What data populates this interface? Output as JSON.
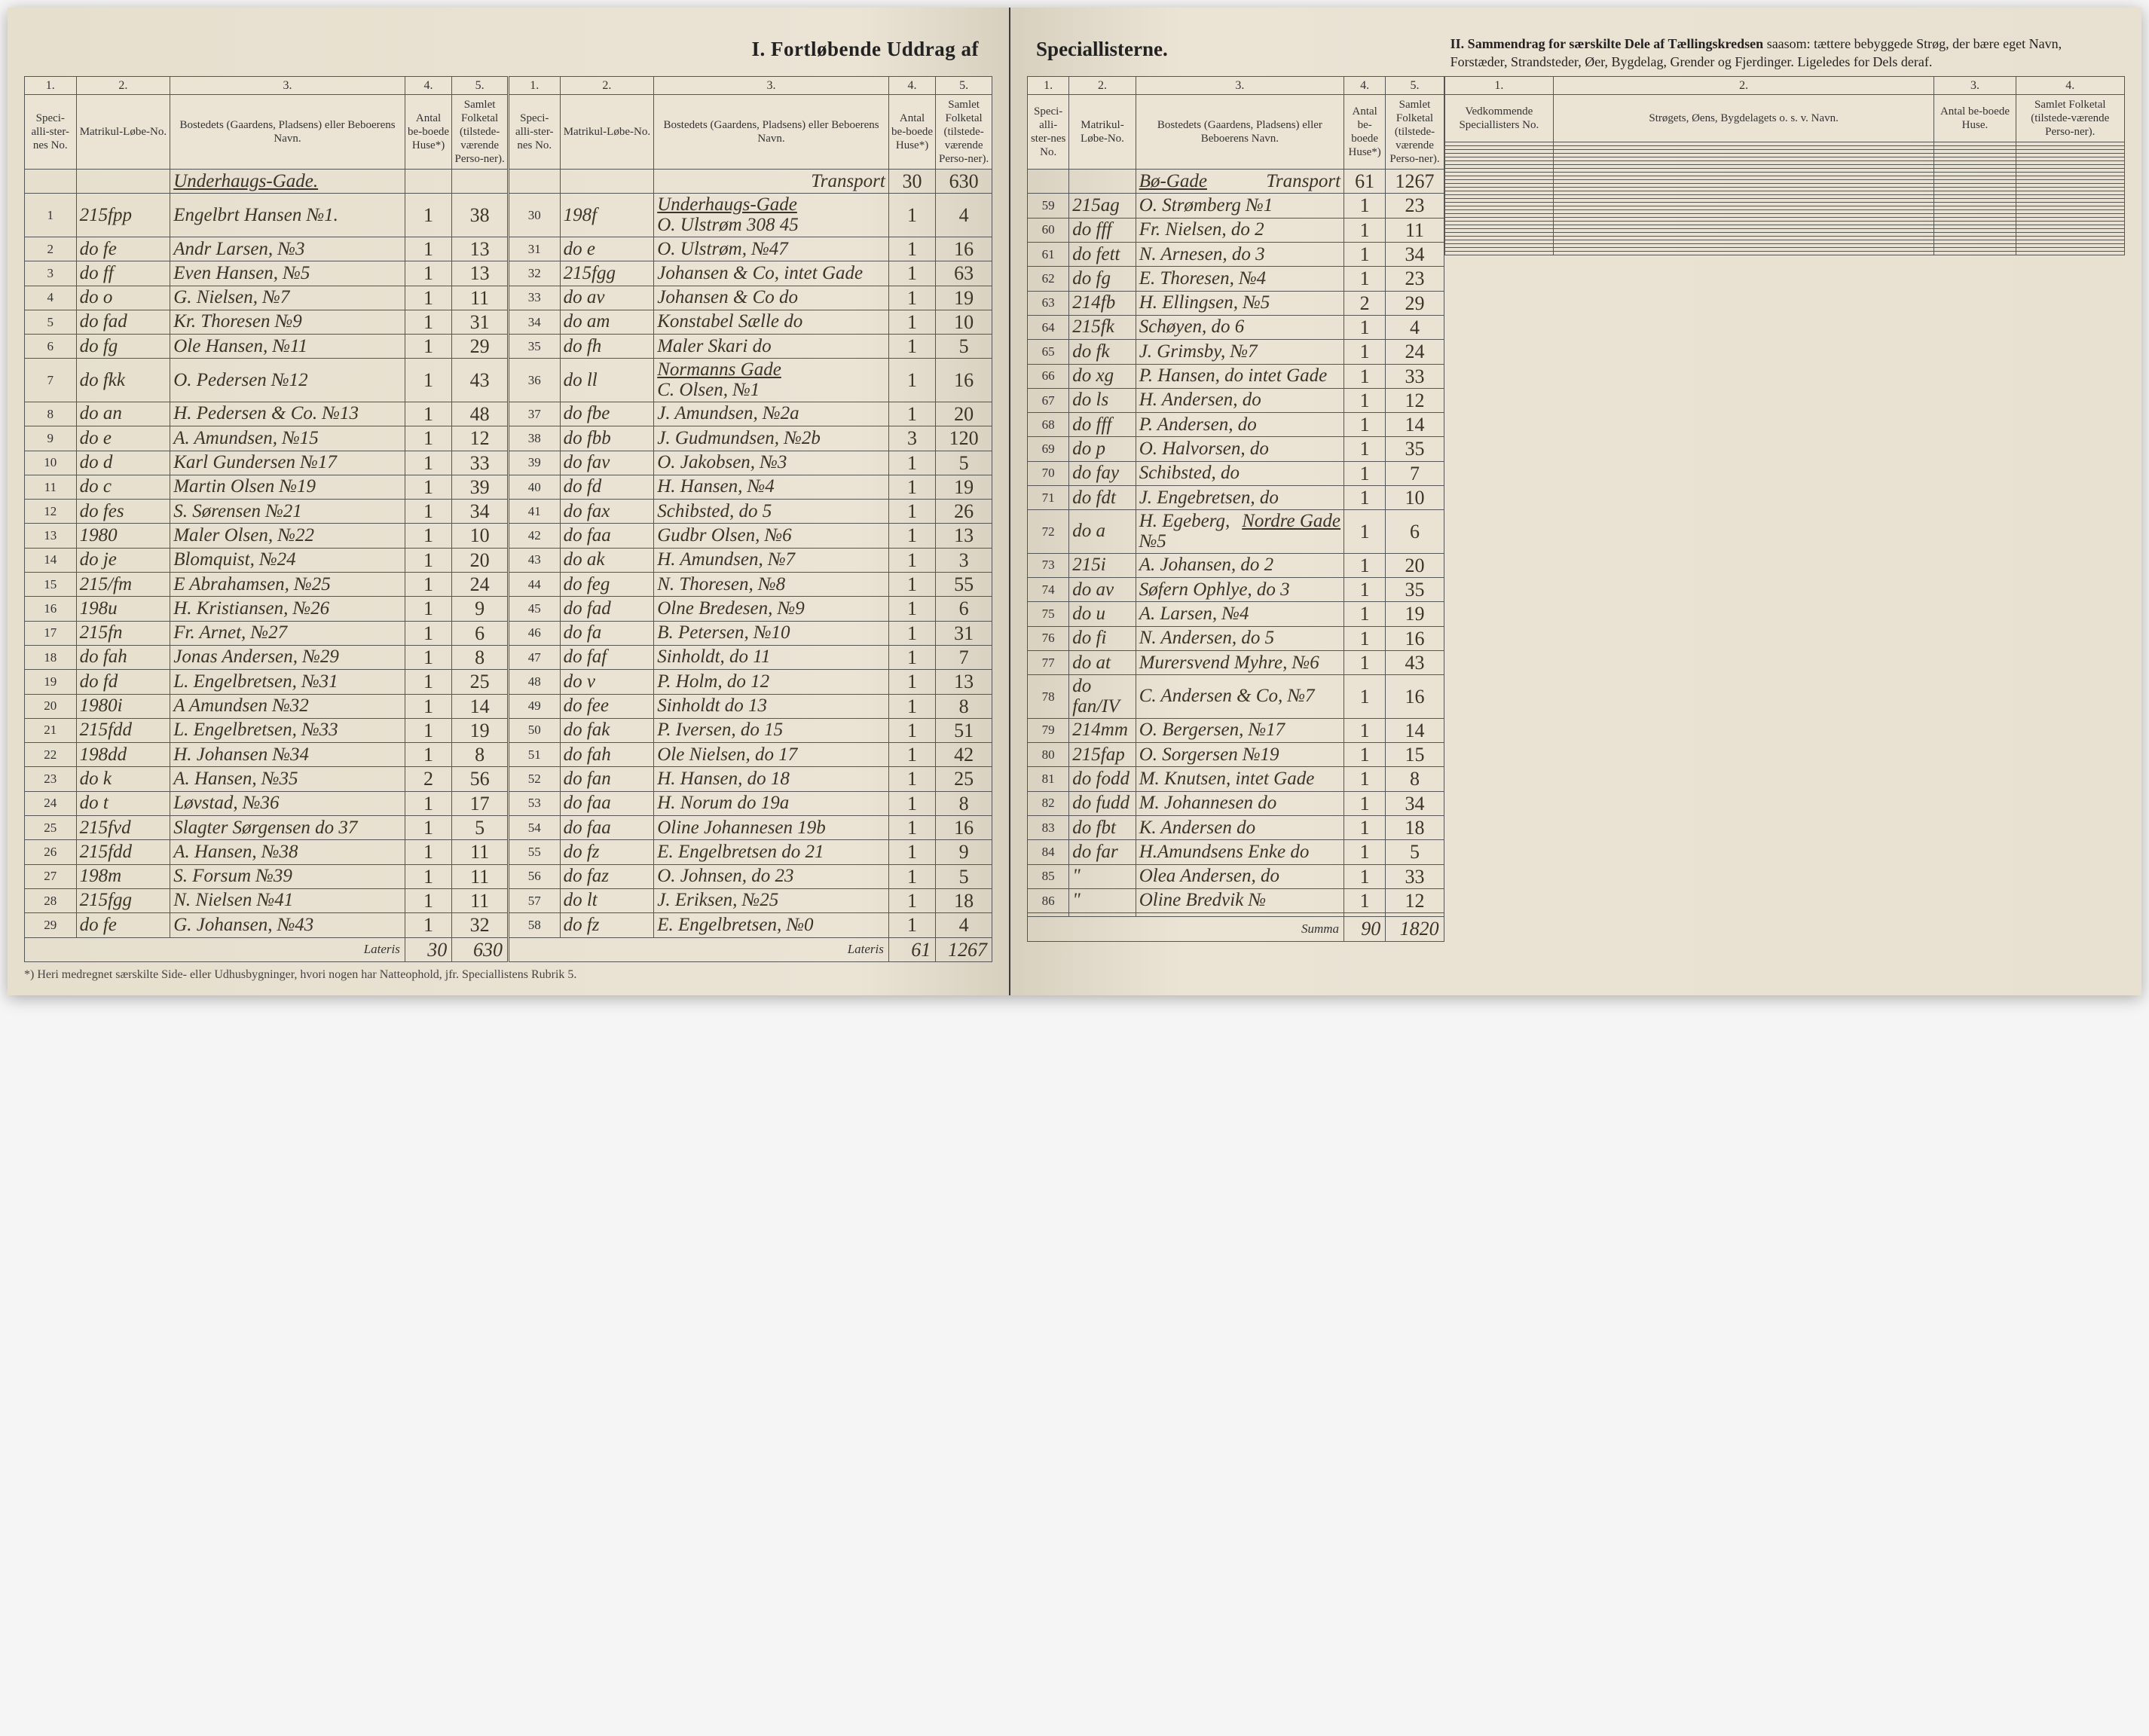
{
  "titles": {
    "section1_left": "I.  Fortløbende Uddrag af",
    "section1_right": "Speciallisterne.",
    "section2": "II.  Sammendrag for særskilte Dele af Tællingskredsen",
    "section2_sub": "saasom: tættere bebyggede Strøg, der bære eget Navn, Forstæder, Strandsteder, Øer, Bygdelag, Grender og Fjerdinger. Ligeledes for Dels deraf."
  },
  "colnums": [
    "1.",
    "2.",
    "3.",
    "4.",
    "5."
  ],
  "headers": {
    "c1": "Speci-alli-ster-nes No.",
    "c2": "Matrikul-Løbe-No.",
    "c3": "Bostedets (Gaardens, Pladsens) eller Beboerens Navn.",
    "c4": "Antal be-boede Huse*)",
    "c5": "Samlet Folketal (tilstede-værende Perso-ner)."
  },
  "headers2": {
    "c1": "Vedkommende Speciallisters No.",
    "c2": "Strøgets, Øens, Bygdelagets o. s. v. Navn.",
    "c3": "Antal be-boede Huse.",
    "c4": "Samlet Folketal (tilstede-værende Perso-ner)."
  },
  "streets": {
    "s1": "Underhaugs-Gade.",
    "s2": "Underhaugs-Gade",
    "s3": "Normanns Gade",
    "s4": "Bø-Gade",
    "s5": "Nordre Gade"
  },
  "transport": "Transport",
  "lateris": "Lateris",
  "summa": "Summa",
  "footnote": "*) Heri medregnet særskilte Side- eller Udhusbygninger, hvori nogen har Natteophold, jfr. Speciallistens Rubrik 5.",
  "left_block1": [
    {
      "n": "1",
      "m": "215fpp",
      "name": "Engelbrt Hansen №1.",
      "h": "1",
      "p": "38"
    },
    {
      "n": "2",
      "m": "do fe",
      "name": "Andr Larsen, №3",
      "h": "1",
      "p": "13"
    },
    {
      "n": "3",
      "m": "do ff",
      "name": "Even Hansen, №5",
      "h": "1",
      "p": "13"
    },
    {
      "n": "4",
      "m": "do o",
      "name": "G. Nielsen, №7",
      "h": "1",
      "p": "11"
    },
    {
      "n": "5",
      "m": "do fad",
      "name": "Kr. Thoresen №9",
      "h": "1",
      "p": "31"
    },
    {
      "n": "6",
      "m": "do fg",
      "name": "Ole Hansen, №11",
      "h": "1",
      "p": "29"
    },
    {
      "n": "7",
      "m": "do fkk",
      "name": "O. Pedersen №12",
      "h": "1",
      "p": "43"
    },
    {
      "n": "8",
      "m": "do an",
      "name": "H. Pedersen & Co. №13",
      "h": "1",
      "p": "48"
    },
    {
      "n": "9",
      "m": "do e",
      "name": "A. Amundsen, №15",
      "h": "1",
      "p": "12"
    },
    {
      "n": "10",
      "m": "do d",
      "name": "Karl Gundersen №17",
      "h": "1",
      "p": "33"
    },
    {
      "n": "11",
      "m": "do c",
      "name": "Martin Olsen №19",
      "h": "1",
      "p": "39"
    },
    {
      "n": "12",
      "m": "do fes",
      "name": "S. Sørensen №21",
      "h": "1",
      "p": "34"
    },
    {
      "n": "13",
      "m": "1980",
      "name": "Maler Olsen, №22",
      "h": "1",
      "p": "10"
    },
    {
      "n": "14",
      "m": "do je",
      "name": "Blomquist, №24",
      "h": "1",
      "p": "20"
    },
    {
      "n": "15",
      "m": "215/fm",
      "name": "E Abrahamsen, №25",
      "h": "1",
      "p": "24"
    },
    {
      "n": "16",
      "m": "198u",
      "name": "H. Kristiansen, №26",
      "h": "1",
      "p": "9"
    },
    {
      "n": "17",
      "m": "215fn",
      "name": "Fr. Arnet, №27",
      "h": "1",
      "p": "6"
    },
    {
      "n": "18",
      "m": "do fah",
      "name": "Jonas Andersen, №29",
      "h": "1",
      "p": "8"
    },
    {
      "n": "19",
      "m": "do fd",
      "name": "L. Engelbretsen, №31",
      "h": "1",
      "p": "25"
    },
    {
      "n": "20",
      "m": "1980i",
      "name": "A Amundsen №32",
      "h": "1",
      "p": "14"
    },
    {
      "n": "21",
      "m": "215fdd",
      "name": "L. Engelbretsen, №33",
      "h": "1",
      "p": "19"
    },
    {
      "n": "22",
      "m": "198dd",
      "name": "H. Johansen №34",
      "h": "1",
      "p": "8"
    },
    {
      "n": "23",
      "m": "do k",
      "name": "A. Hansen, №35",
      "h": "2",
      "p": "56"
    },
    {
      "n": "24",
      "m": "do t",
      "name": "Løvstad, №36",
      "h": "1",
      "p": "17"
    },
    {
      "n": "25",
      "m": "215fvd",
      "name": "Slagter Sørgensen do 37",
      "h": "1",
      "p": "5"
    },
    {
      "n": "26",
      "m": "215fdd",
      "name": "A. Hansen, №38",
      "h": "1",
      "p": "11"
    },
    {
      "n": "27",
      "m": "198m",
      "name": "S. Forsum №39",
      "h": "1",
      "p": "11"
    },
    {
      "n": "28",
      "m": "215fgg",
      "name": "N. Nielsen №41",
      "h": "1",
      "p": "11"
    },
    {
      "n": "29",
      "m": "do fe",
      "name": "G. Johansen, №43",
      "h": "1",
      "p": "32"
    }
  ],
  "left_lateris": {
    "h": "30",
    "p": "630"
  },
  "left_block2_transport": {
    "h": "30",
    "p": "630"
  },
  "left_block2": [
    {
      "n": "30",
      "m": "198f",
      "name": "O. Ulstrøm 308 45",
      "h": "1",
      "p": "4"
    },
    {
      "n": "31",
      "m": "do e",
      "name": "O. Ulstrøm, №47",
      "h": "1",
      "p": "16"
    },
    {
      "n": "32",
      "m": "215fgg",
      "name": "Johansen & Co, intet Gade",
      "h": "1",
      "p": "63"
    },
    {
      "n": "33",
      "m": "do av",
      "name": "Johansen & Co do",
      "h": "1",
      "p": "19"
    },
    {
      "n": "34",
      "m": "do am",
      "name": "Konstabel Sælle do",
      "h": "1",
      "p": "10"
    },
    {
      "n": "35",
      "m": "do fh",
      "name": "Maler Skari do",
      "h": "1",
      "p": "5"
    },
    {
      "n": "36",
      "m": "do ll",
      "name": "C. Olsen, №1",
      "h": "1",
      "p": "16"
    },
    {
      "n": "37",
      "m": "do fbe",
      "name": "J. Amundsen, №2a",
      "h": "1",
      "p": "20"
    },
    {
      "n": "38",
      "m": "do fbb",
      "name": "J. Gudmundsen, №2b",
      "h": "3",
      "p": "120"
    },
    {
      "n": "39",
      "m": "do fav",
      "name": "O. Jakobsen, №3",
      "h": "1",
      "p": "5"
    },
    {
      "n": "40",
      "m": "do fd",
      "name": "H. Hansen, №4",
      "h": "1",
      "p": "19"
    },
    {
      "n": "41",
      "m": "do fax",
      "name": "Schibsted, do 5",
      "h": "1",
      "p": "26"
    },
    {
      "n": "42",
      "m": "do faa",
      "name": "Gudbr Olsen, №6",
      "h": "1",
      "p": "13"
    },
    {
      "n": "43",
      "m": "do ak",
      "name": "H. Amundsen, №7",
      "h": "1",
      "p": "3"
    },
    {
      "n": "44",
      "m": "do feg",
      "name": "N. Thoresen, №8",
      "h": "1",
      "p": "55"
    },
    {
      "n": "45",
      "m": "do fad",
      "name": "Olne Bredesen, №9",
      "h": "1",
      "p": "6"
    },
    {
      "n": "46",
      "m": "do fa",
      "name": "B. Petersen, №10",
      "h": "1",
      "p": "31"
    },
    {
      "n": "47",
      "m": "do faf",
      "name": "Sinholdt, do 11",
      "h": "1",
      "p": "7"
    },
    {
      "n": "48",
      "m": "do v",
      "name": "P. Holm, do 12",
      "h": "1",
      "p": "13"
    },
    {
      "n": "49",
      "m": "do fee",
      "name": "Sinholdt do 13",
      "h": "1",
      "p": "8"
    },
    {
      "n": "50",
      "m": "do fak",
      "name": "P. Iversen, do 15",
      "h": "1",
      "p": "51"
    },
    {
      "n": "51",
      "m": "do fah",
      "name": "Ole Nielsen, do 17",
      "h": "1",
      "p": "42"
    },
    {
      "n": "52",
      "m": "do fan",
      "name": "H. Hansen, do 18",
      "h": "1",
      "p": "25"
    },
    {
      "n": "53",
      "m": "do faa",
      "name": "H. Norum do 19a",
      "h": "1",
      "p": "8"
    },
    {
      "n": "54",
      "m": "do faa",
      "name": "Oline Johannesen 19b",
      "h": "1",
      "p": "16"
    },
    {
      "n": "55",
      "m": "do fz",
      "name": "E. Engelbretsen do 21",
      "h": "1",
      "p": "9"
    },
    {
      "n": "56",
      "m": "do faz",
      "name": "O. Johnsen, do 23",
      "h": "1",
      "p": "5"
    },
    {
      "n": "57",
      "m": "do lt",
      "name": "J. Eriksen, №25",
      "h": "1",
      "p": "18"
    },
    {
      "n": "58",
      "m": "do fz",
      "name": "E. Engelbretsen, №0",
      "h": "1",
      "p": "4"
    }
  ],
  "left_lateris2": {
    "h": "61",
    "p": "1267"
  },
  "right_block1_transport": {
    "h": "61",
    "p": "1267"
  },
  "right_block1": [
    {
      "n": "59",
      "m": "215ag",
      "name": "O. Strømberg №1",
      "h": "1",
      "p": "23"
    },
    {
      "n": "60",
      "m": "do fff",
      "name": "Fr. Nielsen, do 2",
      "h": "1",
      "p": "11"
    },
    {
      "n": "61",
      "m": "do fett",
      "name": "N. Arnesen, do 3",
      "h": "1",
      "p": "34"
    },
    {
      "n": "62",
      "m": "do fg",
      "name": "E. Thoresen, №4",
      "h": "1",
      "p": "23"
    },
    {
      "n": "63",
      "m": "214fb",
      "name": "H. Ellingsen, №5",
      "h": "2",
      "p": "29"
    },
    {
      "n": "64",
      "m": "215fk",
      "name": "Schøyen, do 6",
      "h": "1",
      "p": "4"
    },
    {
      "n": "65",
      "m": "do fk",
      "name": "J. Grimsby, №7",
      "h": "1",
      "p": "24"
    },
    {
      "n": "66",
      "m": "do xg",
      "name": "P. Hansen, do intet Gade",
      "h": "1",
      "p": "33"
    },
    {
      "n": "67",
      "m": "do ls",
      "name": "H. Andersen, do",
      "h": "1",
      "p": "12"
    },
    {
      "n": "68",
      "m": "do fff",
      "name": "P. Andersen, do",
      "h": "1",
      "p": "14"
    },
    {
      "n": "69",
      "m": "do p",
      "name": "O. Halvorsen, do",
      "h": "1",
      "p": "35"
    },
    {
      "n": "70",
      "m": "do fay",
      "name": "Schibsted, do",
      "h": "1",
      "p": "7"
    },
    {
      "n": "71",
      "m": "do fdt",
      "name": "J. Engebretsen, do",
      "h": "1",
      "p": "10"
    },
    {
      "n": "72",
      "m": "do a",
      "name": "H. Egeberg, №5",
      "h": "1",
      "p": "6"
    },
    {
      "n": "73",
      "m": "215i",
      "name": "A. Johansen, do 2",
      "h": "1",
      "p": "20"
    },
    {
      "n": "74",
      "m": "do av",
      "name": "Søfern Ophlye, do 3",
      "h": "1",
      "p": "35"
    },
    {
      "n": "75",
      "m": "do u",
      "name": "A. Larsen, №4",
      "h": "1",
      "p": "19"
    },
    {
      "n": "76",
      "m": "do fi",
      "name": "N. Andersen, do 5",
      "h": "1",
      "p": "16"
    },
    {
      "n": "77",
      "m": "do at",
      "name": "Murersvend Myhre, №6",
      "h": "1",
      "p": "43"
    },
    {
      "n": "78",
      "m": "do fan/IV",
      "name": "C. Andersen & Co, №7",
      "h": "1",
      "p": "16"
    },
    {
      "n": "79",
      "m": "214mm",
      "name": "O. Bergersen, №17",
      "h": "1",
      "p": "14"
    },
    {
      "n": "80",
      "m": "215fap",
      "name": "O. Sorgersen №19",
      "h": "1",
      "p": "15"
    },
    {
      "n": "81",
      "m": "do fodd",
      "name": "M. Knutsen, intet Gade",
      "h": "1",
      "p": "8"
    },
    {
      "n": "82",
      "m": "do fudd",
      "name": "M. Johannesen do",
      "h": "1",
      "p": "34"
    },
    {
      "n": "83",
      "m": "do fbt",
      "name": "K. Andersen do",
      "h": "1",
      "p": "18"
    },
    {
      "n": "84",
      "m": "do far",
      "name": "H.Amundsens Enke do",
      "h": "1",
      "p": "5"
    },
    {
      "n": "85",
      "m": "\"",
      "name": "Olea Andersen, do",
      "h": "1",
      "p": "33"
    },
    {
      "n": "86",
      "m": "\"",
      "name": "Oline Bredvik №",
      "h": "1",
      "p": "12"
    }
  ],
  "right_summa": {
    "h": "90",
    "p": "1820"
  },
  "col_widths": {
    "c1": "5.5%",
    "c2": "9.5%",
    "c3": "27%",
    "c4": "5%",
    "c5": "6.5%"
  },
  "colors": {
    "paper": "#ebe3d4",
    "ink_print": "#333333",
    "ink_hand": "#3a3528",
    "rule": "#555555"
  }
}
